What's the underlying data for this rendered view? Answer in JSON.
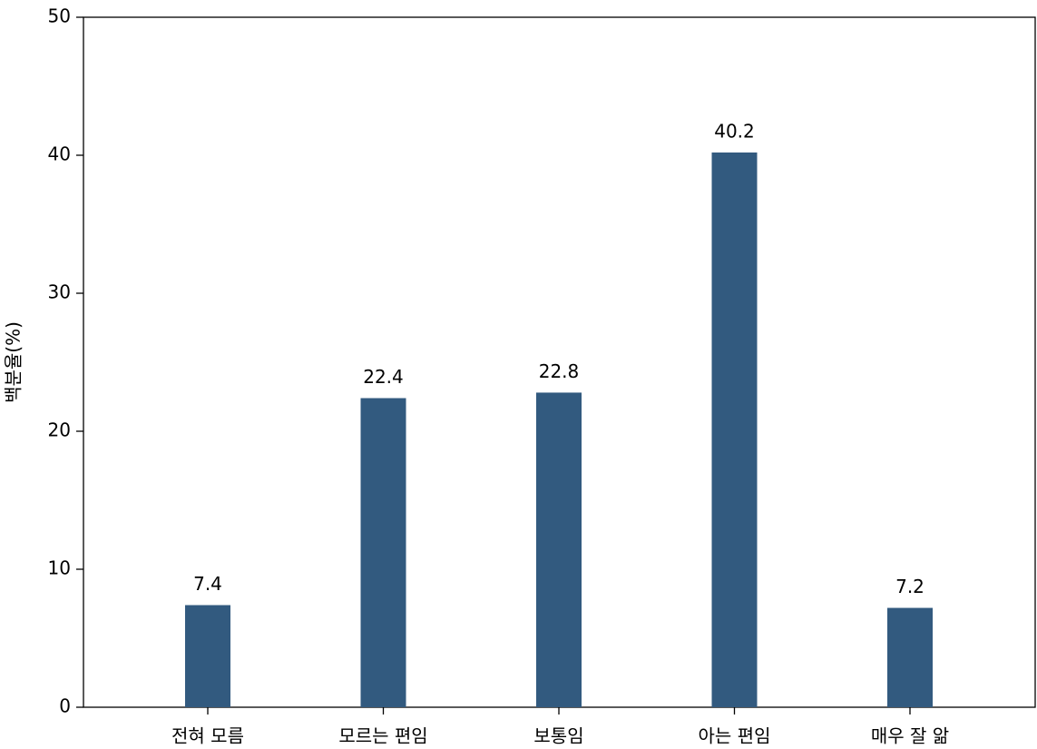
{
  "chart_data": {
    "type": "bar",
    "y_label": "백분율(%)",
    "categories": [
      "전혀 모름",
      "모르는 편임",
      "보통임",
      "아는 편임",
      "매우 잘 앎"
    ],
    "values": [
      7.4,
      22.4,
      22.8,
      40.2,
      7.2
    ],
    "color": "#325a7f",
    "ylim": [
      0,
      50
    ],
    "yticks": [
      0,
      10,
      20,
      30,
      40,
      50
    ],
    "grid": false
  }
}
